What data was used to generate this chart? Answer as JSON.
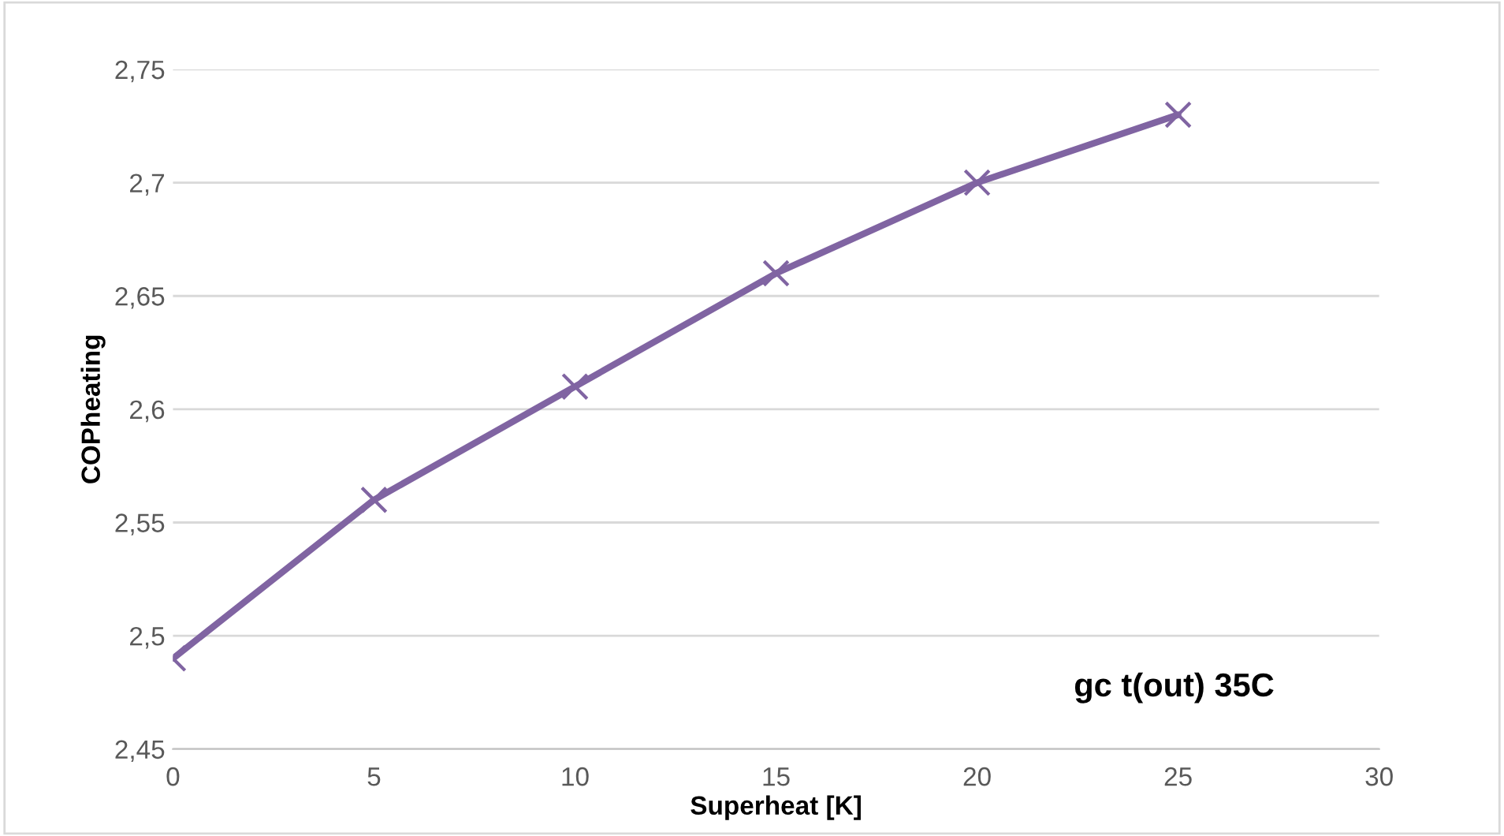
{
  "chart_data": {
    "type": "line",
    "xlabel": "Superheat [K]",
    "ylabel": "COPheating",
    "annotations": [
      "gc t(out) 35C"
    ],
    "x": [
      0,
      5,
      10,
      15,
      20,
      25
    ],
    "series": [
      {
        "color": "#8064a2",
        "values": [
          2.49,
          2.56,
          2.61,
          2.66,
          2.7,
          2.73
        ]
      }
    ],
    "xlim": [
      0,
      30
    ],
    "xticks": [
      0,
      5,
      10,
      15,
      20,
      25,
      30
    ],
    "ylim": [
      2.45,
      2.75
    ],
    "yticks": [
      {
        "value": 2.45,
        "label": "2,45"
      },
      {
        "value": 2.5,
        "label": "2,5"
      },
      {
        "value": 2.55,
        "label": "2,55"
      },
      {
        "value": 2.6,
        "label": "2,6"
      },
      {
        "value": 2.65,
        "label": "2,65"
      },
      {
        "value": 2.7,
        "label": "2,7"
      },
      {
        "value": 2.75,
        "label": "2,75"
      }
    ],
    "grid": "y",
    "marker": "cross",
    "line_style": "solid",
    "legend": false
  }
}
